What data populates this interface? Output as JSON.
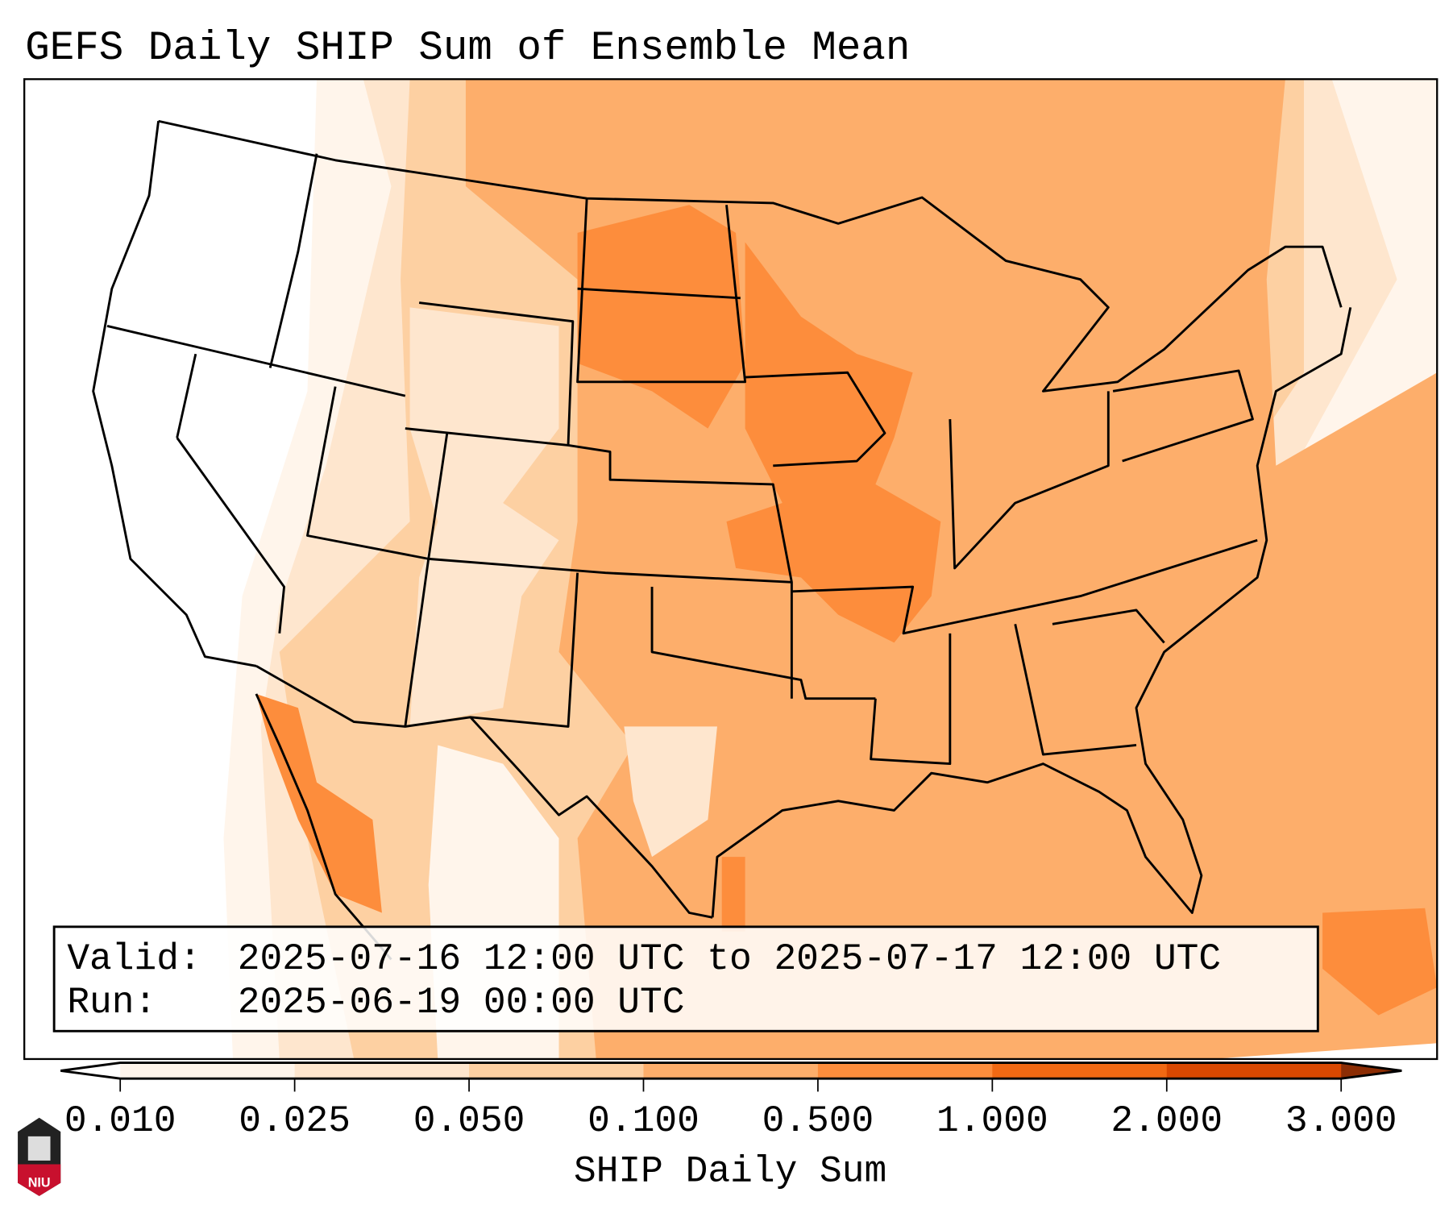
{
  "title": "GEFS Daily SHIP Sum of Ensemble Mean",
  "info": {
    "valid_label": "Valid:",
    "valid_value": "2025-07-16 12:00 UTC to 2025-07-17 12:00 UTC",
    "run_label": "Run:",
    "run_value": "2025-06-19 00:00 UTC"
  },
  "colorbar": {
    "label": "SHIP Daily Sum",
    "ticks": [
      "0.010",
      "0.025",
      "0.050",
      "0.100",
      "0.500",
      "1.000",
      "2.000",
      "3.000"
    ],
    "colors": [
      "#fff5eb",
      "#fee6ce",
      "#fdd0a2",
      "#fdae6b",
      "#fd8d3c",
      "#f16913",
      "#d94801"
    ],
    "under_color": "#ffffff",
    "over_color": "#8c2d04"
  },
  "logo": {
    "text": "NIU"
  }
}
